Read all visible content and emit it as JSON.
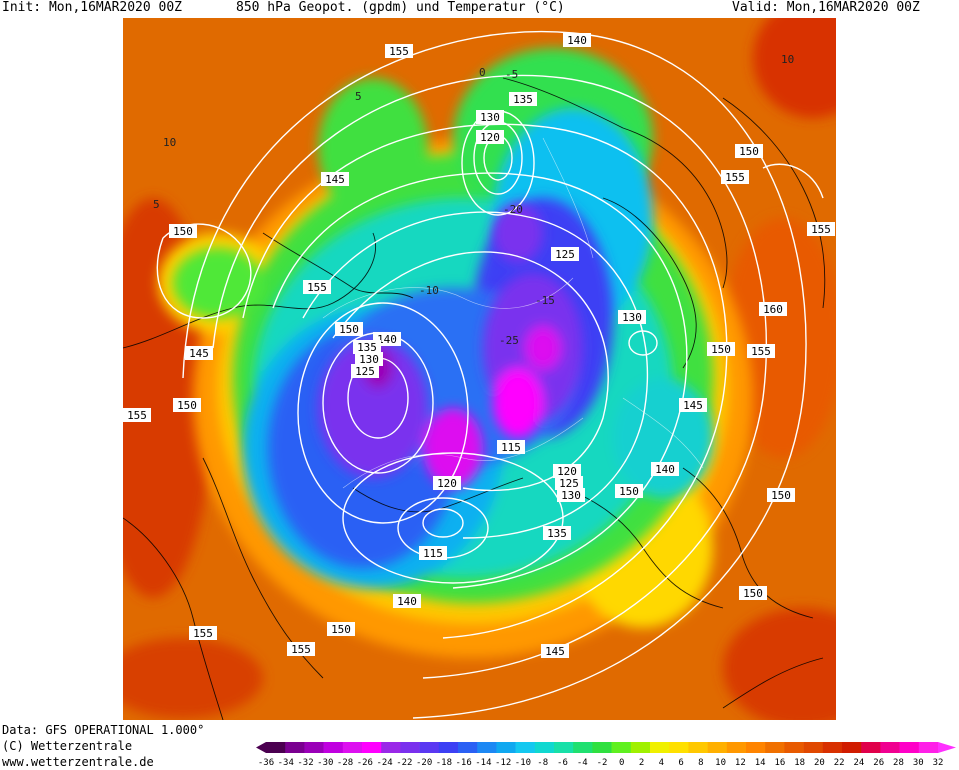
{
  "header": {
    "init": "Init: Mon,16MAR2020 00Z",
    "title": "850 hPa Geopot. (gpdm) und Temperatur (°C)",
    "valid": "Valid: Mon,16MAR2020 00Z"
  },
  "footer": {
    "data": "Data: GFS OPERATIONAL 1.000°",
    "copyright": "(C) Wetterzentrale",
    "url": "www.wetterzentrale.de"
  },
  "legend": {
    "ticks": [
      "-36",
      "-34",
      "-32",
      "-30",
      "-28",
      "-26",
      "-24",
      "-22",
      "-20",
      "-18",
      "-16",
      "-14",
      "-12",
      "-10",
      "-8",
      "-6",
      "-4",
      "-2",
      "0",
      "2",
      "4",
      "6",
      "8",
      "10",
      "12",
      "14",
      "16",
      "18",
      "20",
      "22",
      "24",
      "26",
      "28",
      "30",
      "32"
    ],
    "colors": [
      "#4b0050",
      "#7a0090",
      "#9a00b8",
      "#c000e0",
      "#dd10f0",
      "#ff00ff",
      "#9a28e8",
      "#7a30ee",
      "#5a38f2",
      "#3c40f4",
      "#2a60f4",
      "#1c88f4",
      "#10a8f0",
      "#14c8f0",
      "#10d8d0",
      "#18e0a8",
      "#20e070",
      "#30e040",
      "#60f020",
      "#a0f000",
      "#f0f000",
      "#ffe000",
      "#ffc800",
      "#ffb000",
      "#ff9800",
      "#ff8400",
      "#f07000",
      "#e85a00",
      "#e04800",
      "#d83000",
      "#d01c00",
      "#e0004a",
      "#f00090",
      "#ff00c8",
      "#ff20e8"
    ],
    "arrow_color": "#ff30ff"
  },
  "contour_labels": [
    "155",
    "145",
    "140",
    "125",
    "150",
    "130",
    "120",
    "135",
    "115",
    "160",
    "10",
    "5",
    "0",
    "-5",
    "-10",
    "-15",
    "-20",
    "-25"
  ],
  "map": {
    "background": "#e06a00",
    "contour_color": "#ffffff",
    "coast_color": "#000000"
  }
}
